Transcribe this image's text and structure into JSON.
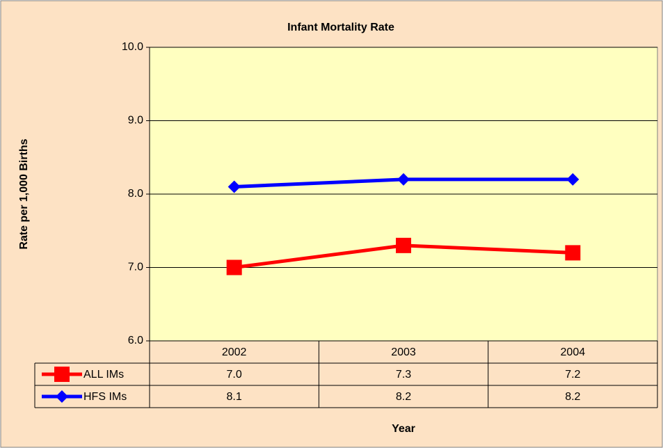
{
  "chart_data": {
    "type": "line",
    "title": "Infant Mortality Rate",
    "y_label": "Rate per 1,000 Births",
    "x_label": "Year",
    "categories": [
      "2002",
      "2003",
      "2004"
    ],
    "series": [
      {
        "name": "ALL IMs",
        "color": "#ff0000",
        "marker": "square",
        "values": [
          7.0,
          7.3,
          7.2
        ],
        "value_labels": [
          "7.0",
          "7.3",
          "7.2"
        ]
      },
      {
        "name": "HFS IMs",
        "color": "#0000ff",
        "marker": "diamond",
        "values": [
          8.1,
          8.2,
          8.2
        ],
        "value_labels": [
          "8.1",
          "8.2",
          "8.2"
        ]
      }
    ],
    "ylim": [
      6,
      10
    ],
    "yticks": [
      {
        "value": 6,
        "label": "6.0"
      },
      {
        "value": 7,
        "label": "7.0"
      },
      {
        "value": 8,
        "label": "8.0"
      },
      {
        "value": 9,
        "label": "9.0"
      },
      {
        "value": 10,
        "label": "10.0"
      }
    ],
    "grid": true,
    "data_table": true
  }
}
